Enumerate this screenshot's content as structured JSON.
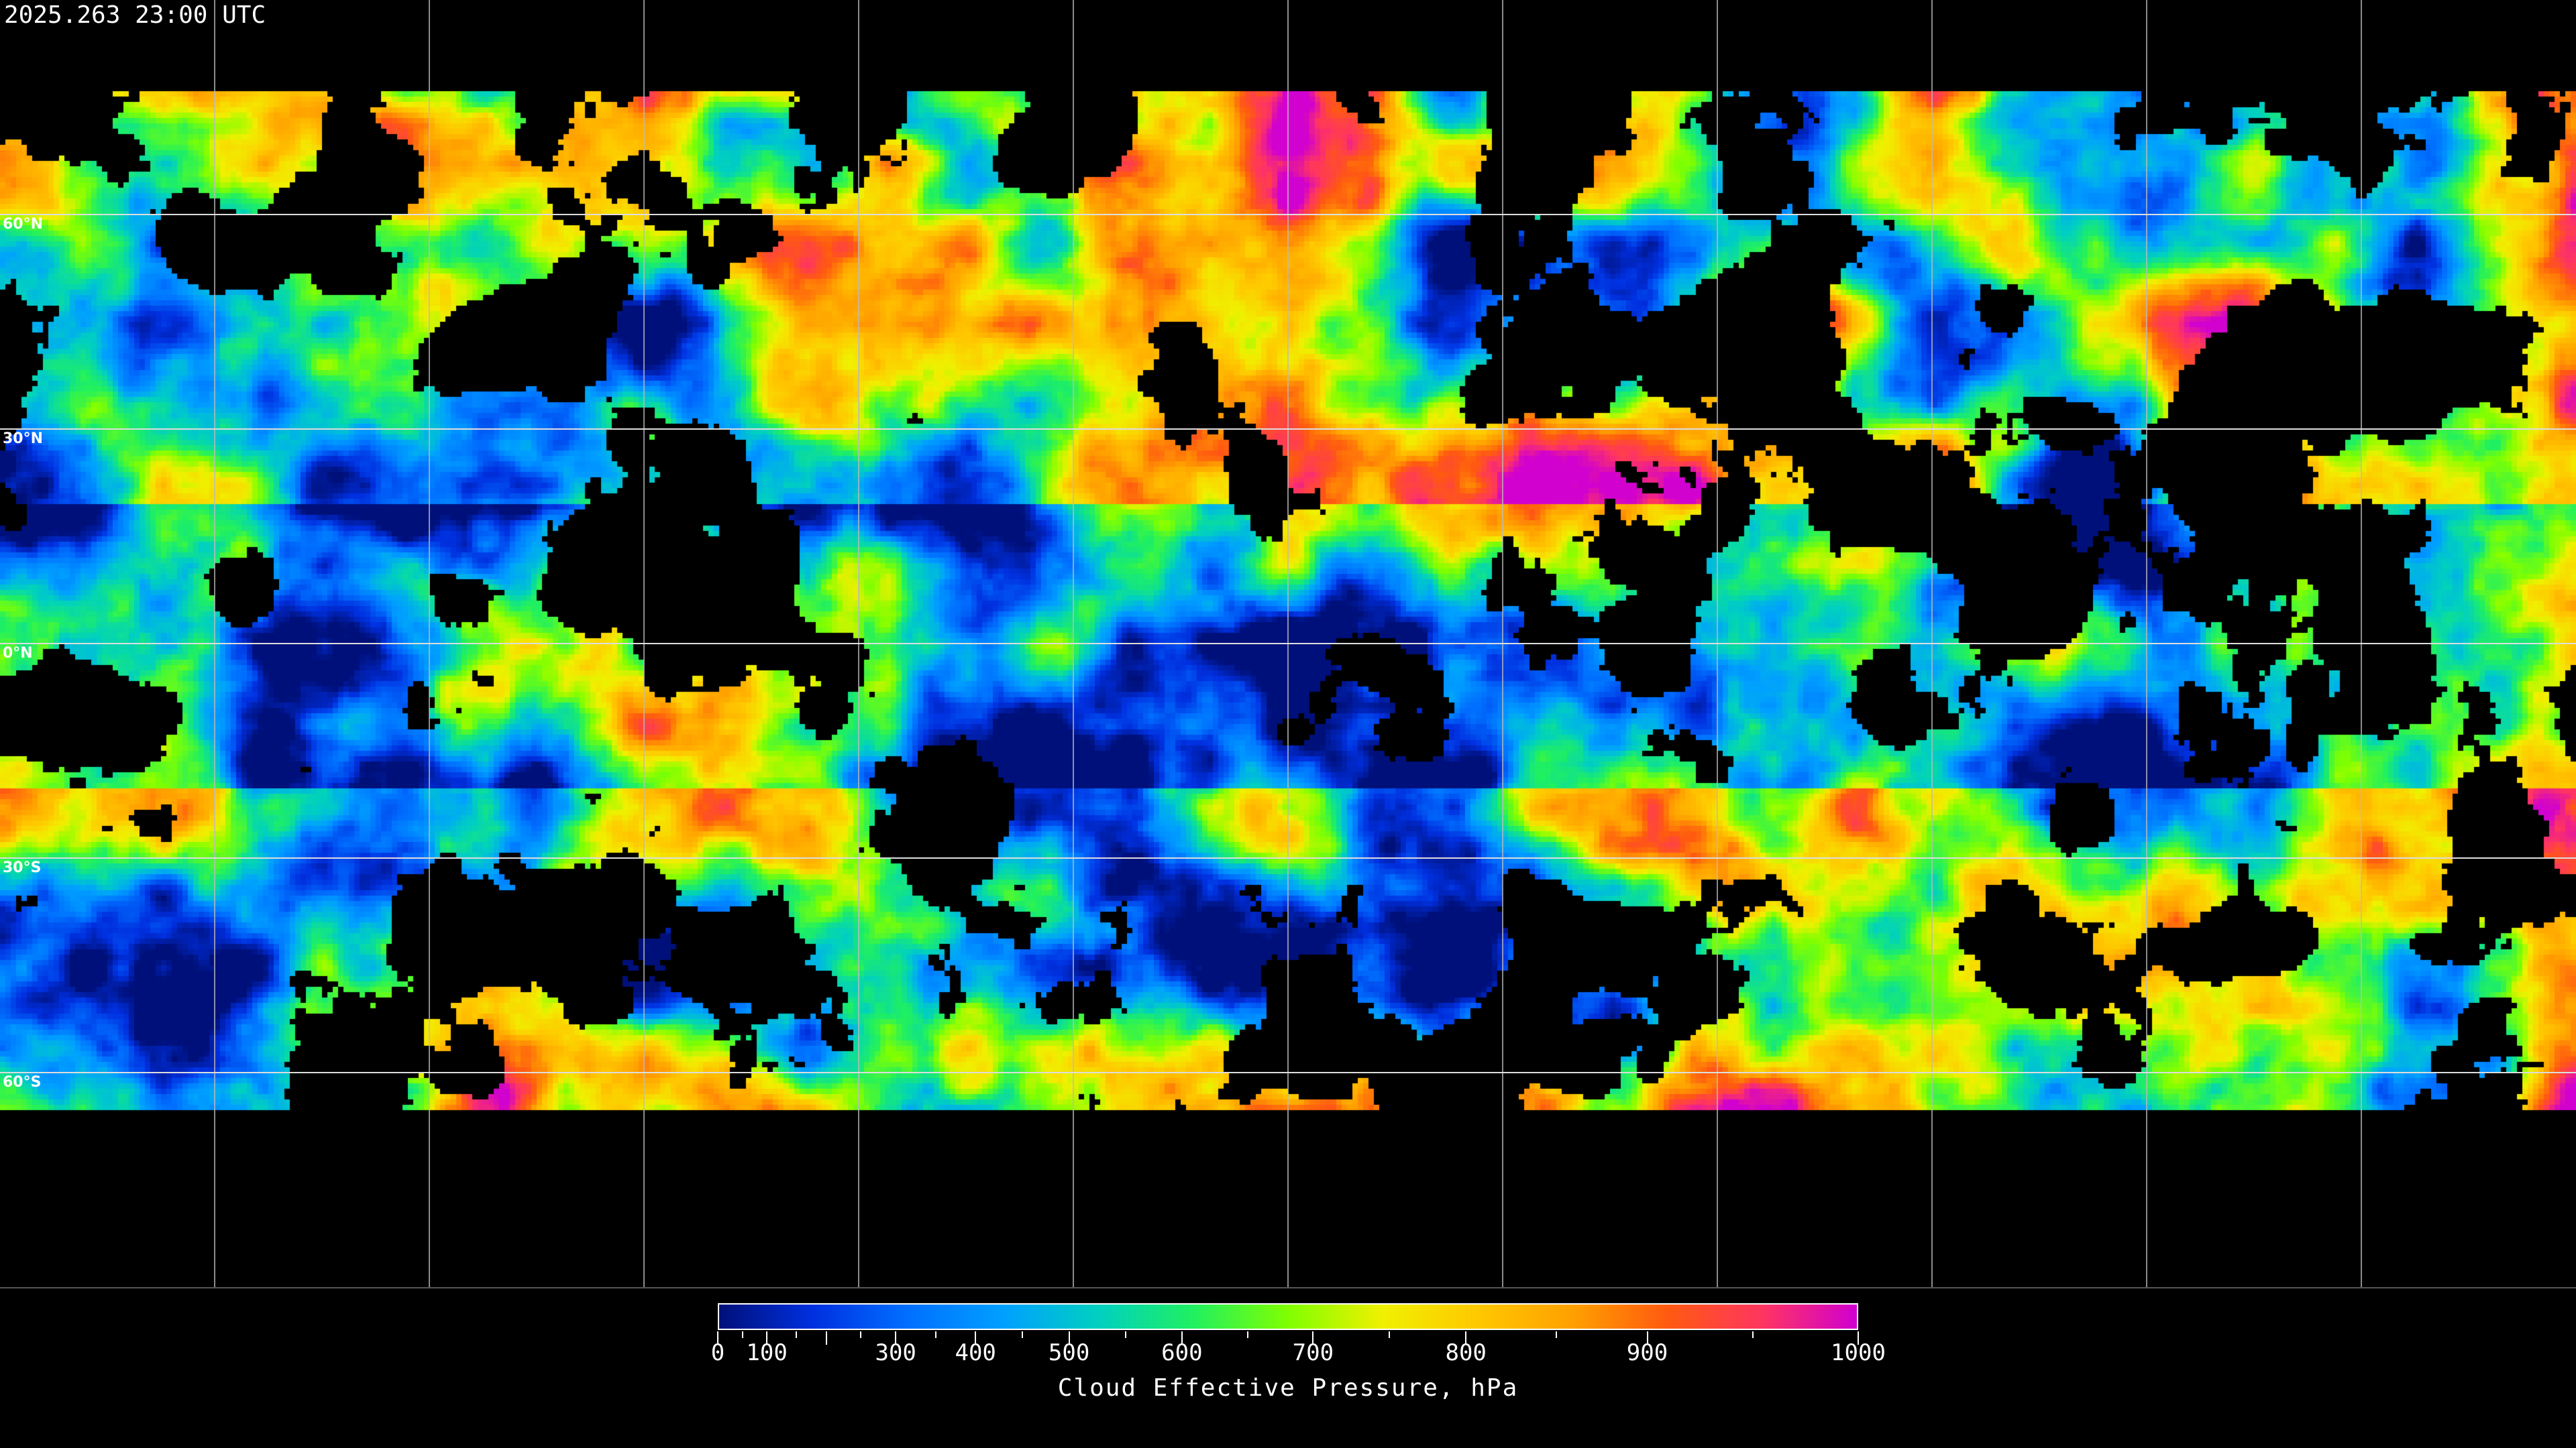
{
  "timestamp": "2025.263 23:00 UTC",
  "map": {
    "projection": "equirectangular",
    "graticule_spacing_deg": 30,
    "lat_labels": [
      "60°N",
      "30°N",
      "0°N",
      "30°S",
      "60°S"
    ],
    "no_data_color": "#000000"
  },
  "colorbar": {
    "title": "Cloud Effective Pressure, hPa",
    "range": [
      0,
      1000
    ],
    "major_ticks": [
      {
        "value": 0,
        "label": "0"
      },
      {
        "value": 100,
        "label": "100"
      },
      {
        "value": 200,
        "label": ""
      },
      {
        "value": 300,
        "label": "300"
      },
      {
        "value": 400,
        "label": "400"
      },
      {
        "value": 500,
        "label": "500"
      },
      {
        "value": 600,
        "label": "600"
      },
      {
        "value": 700,
        "label": "700"
      },
      {
        "value": 800,
        "label": "800"
      },
      {
        "value": 900,
        "label": "900"
      },
      {
        "value": 1000,
        "label": "1000"
      }
    ],
    "colors": [
      "#00107a",
      "#0030e0",
      "#0070ff",
      "#00a0ff",
      "#00d0c0",
      "#20f060",
      "#80ff00",
      "#f0f000",
      "#ffc800",
      "#ffa000",
      "#ff5a10",
      "#ff3560",
      "#d000d0"
    ]
  }
}
